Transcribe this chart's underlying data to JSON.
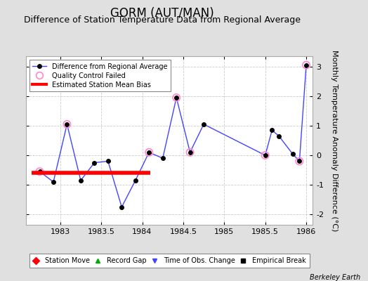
{
  "title": "GORM (AUT/MAN)",
  "subtitle": "Difference of Station Temperature Data from Regional Average",
  "ylabel": "Monthly Temperature Anomaly Difference (°C)",
  "background_color": "#e0e0e0",
  "plot_bg_color": "#ffffff",
  "xlim": [
    1982.58,
    1986.08
  ],
  "ylim": [
    -2.35,
    3.35
  ],
  "yticks": [
    -2,
    -1,
    0,
    1,
    2,
    3
  ],
  "xticks": [
    1983,
    1983.5,
    1984,
    1984.5,
    1985,
    1985.5,
    1986
  ],
  "xtick_labels": [
    "1983",
    "1983.5",
    "1984",
    "1984.5",
    "1985",
    "1985.5",
    "1986"
  ],
  "line_x": [
    1982.75,
    1982.917,
    1983.083,
    1983.25,
    1983.417,
    1983.583,
    1983.75,
    1983.917,
    1984.083,
    1984.25,
    1984.417,
    1984.583,
    1984.75,
    1985.5,
    1985.583,
    1985.667,
    1985.833,
    1985.917,
    1986.0
  ],
  "line_y": [
    -0.55,
    -0.9,
    1.05,
    -0.85,
    -0.25,
    -0.2,
    -1.75,
    -0.85,
    0.1,
    -0.1,
    1.95,
    0.1,
    1.05,
    0.0,
    0.85,
    0.65,
    0.05,
    -0.2,
    3.05
  ],
  "qc_failed_x": [
    1982.75,
    1983.083,
    1984.083,
    1984.417,
    1984.583,
    1985.5,
    1985.917,
    1986.0
  ],
  "qc_failed_y": [
    -0.55,
    1.05,
    0.1,
    1.95,
    0.1,
    0.0,
    -0.2,
    3.05
  ],
  "bias_line_x": [
    1982.65,
    1984.1
  ],
  "bias_line_y": [
    -0.6,
    -0.6
  ],
  "line_color": "#4444ff",
  "line_marker_color": "#000000",
  "line_marker_size": 4,
  "qc_color": "#ff88cc",
  "bias_color": "#ff0000",
  "grid_color": "#cccccc",
  "title_fontsize": 12,
  "subtitle_fontsize": 9,
  "tick_fontsize": 8,
  "ylabel_fontsize": 8,
  "watermark": "Berkeley Earth"
}
